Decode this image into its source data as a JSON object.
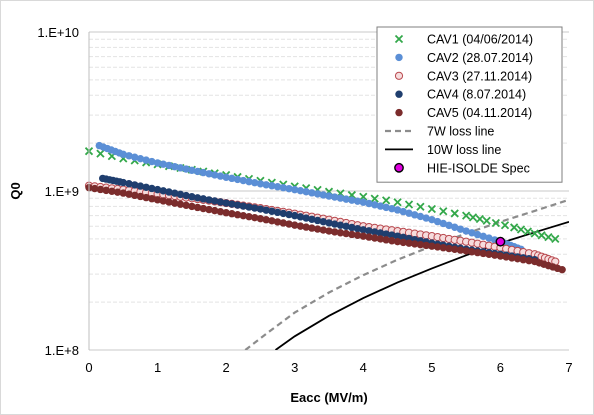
{
  "chart_data": {
    "type": "scatter",
    "title": "",
    "xlabel": "Eacc (MV/m)",
    "ylabel": "Q0",
    "xlim": [
      0,
      7
    ],
    "ylim": [
      100000000,
      10000000000
    ],
    "yscale": "log",
    "x_ticks": [
      "0",
      "1",
      "2",
      "3",
      "4",
      "5",
      "6",
      "7"
    ],
    "x_tick_values": [
      0,
      1,
      2,
      3,
      4,
      5,
      6,
      7
    ],
    "y_ticks": [
      "1.E+8",
      "1.E+9",
      "1.E+10"
    ],
    "y_tick_values": [
      100000000,
      1000000000,
      10000000000
    ],
    "grid": "y-major-and-minor",
    "legend_position": "top-right",
    "series": [
      {
        "name": "CAV1 (04/06/2014)",
        "marker": "x",
        "color": "#33a84a",
        "x": [
          0,
          0.5,
          1.0,
          1.5,
          2.0,
          2.5,
          3.0,
          3.5,
          4.0,
          4.5,
          5.0,
          5.5,
          5.8,
          6.2,
          6.5,
          6.8
        ],
        "y": [
          1780000000,
          1600000000,
          1470000000,
          1360000000,
          1260000000,
          1160000000,
          1070000000,
          990000000,
          920000000,
          850000000,
          770000000,
          700000000,
          650000000,
          590000000,
          540000000,
          500000000
        ]
      },
      {
        "name": "CAV2 (28.07.2014)",
        "marker": "circle",
        "color": "#5b8fd6",
        "x": [
          0.15,
          0.5,
          1.0,
          1.5,
          2.0,
          2.5,
          3.0,
          3.5,
          4.0,
          4.5,
          5.0,
          5.5,
          6.0,
          6.3
        ],
        "y": [
          1930000000,
          1700000000,
          1500000000,
          1350000000,
          1220000000,
          1110000000,
          1020000000,
          930000000,
          850000000,
          760000000,
          660000000,
          560000000,
          480000000,
          430000000
        ]
      },
      {
        "name": "CAV3 (27.11.2014)",
        "marker": "circle-open",
        "color": "#e8a6a9",
        "x": [
          0,
          0.5,
          1.0,
          1.5,
          2.0,
          2.5,
          3.0,
          3.5,
          4.0,
          4.5,
          5.0,
          5.5,
          6.0,
          6.5,
          6.8
        ],
        "y": [
          1080000000,
          1020000000,
          960000000,
          900000000,
          840000000,
          780000000,
          720000000,
          660000000,
          600000000,
          560000000,
          520000000,
          480000000,
          440000000,
          400000000,
          360000000
        ]
      },
      {
        "name": "CAV4 (8.07.2014)",
        "marker": "circle",
        "color": "#1f3e6e",
        "x": [
          0.2,
          0.5,
          1.0,
          1.5,
          2.0,
          2.5,
          3.0,
          3.5,
          4.0,
          4.5,
          5.0,
          5.5,
          6.0,
          6.5
        ],
        "y": [
          1200000000,
          1130000000,
          1020000000,
          920000000,
          840000000,
          770000000,
          700000000,
          630000000,
          570000000,
          520000000,
          470000000,
          430000000,
          400000000,
          370000000
        ]
      },
      {
        "name": "CAV5 (04.11.2014)",
        "marker": "circle",
        "color": "#7b2c2c",
        "x": [
          0,
          0.5,
          1.0,
          1.5,
          2.0,
          2.5,
          3.0,
          3.5,
          4.0,
          4.5,
          5.0,
          5.5,
          6.0,
          6.5,
          6.9
        ],
        "y": [
          1050000000,
          970000000,
          880000000,
          800000000,
          730000000,
          670000000,
          610000000,
          560000000,
          520000000,
          480000000,
          450000000,
          420000000,
          390000000,
          360000000,
          320000000
        ]
      },
      {
        "name": "7W loss line",
        "marker": "dashed-line",
        "color": "#8c8c8c",
        "x": [
          2.28,
          2.6,
          3.0,
          3.5,
          4.0,
          4.5,
          5.0,
          5.5,
          6.0,
          6.5,
          7.0
        ],
        "y": [
          100000000,
          128000000,
          172000000,
          230000000,
          296000000,
          370000000,
          450000000,
          540000000,
          640000000,
          750000000,
          880000000
        ]
      },
      {
        "name": "10W loss line",
        "marker": "solid-line",
        "color": "#000000",
        "x": [
          2.72,
          3.0,
          3.5,
          4.0,
          4.5,
          5.0,
          5.5,
          6.0,
          6.5,
          7.0
        ],
        "y": [
          100000000,
          122000000,
          164000000,
          212000000,
          266000000,
          326000000,
          394000000,
          470000000,
          550000000,
          640000000
        ]
      },
      {
        "name": "HIE-ISOLDE Spec",
        "marker": "circle-magenta",
        "color": "#e000e0",
        "x": [
          6.0
        ],
        "y": [
          480000000
        ]
      }
    ]
  }
}
